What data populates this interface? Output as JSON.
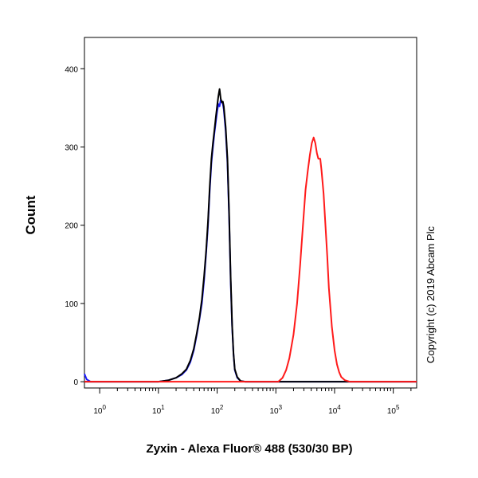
{
  "chart_data": {
    "type": "line",
    "xlabel": "Zyxin - Alexa Fluor® 488 (530/30 BP)",
    "ylabel": "Count",
    "xscale": "log",
    "xlim": [
      0.55,
      250000
    ],
    "ylim": [
      -8,
      440
    ],
    "yticks": [
      0,
      100,
      200,
      300,
      400
    ],
    "xticks": [
      {
        "base": "10",
        "exp": "0",
        "value": 1
      },
      {
        "base": "10",
        "exp": "1",
        "value": 10
      },
      {
        "base": "10",
        "exp": "2",
        "value": 100
      },
      {
        "base": "10",
        "exp": "3",
        "value": 1000
      },
      {
        "base": "10",
        "exp": "4",
        "value": 10000
      },
      {
        "base": "10",
        "exp": "5",
        "value": 100000
      }
    ],
    "grid": false,
    "series": [
      {
        "color": "#1a1aff",
        "points": [
          [
            0.55,
            10
          ],
          [
            0.6,
            3
          ],
          [
            0.7,
            0
          ],
          [
            10,
            0
          ],
          [
            15,
            2
          ],
          [
            20,
            5
          ],
          [
            25,
            9
          ],
          [
            30,
            15
          ],
          [
            35,
            25
          ],
          [
            40,
            40
          ],
          [
            45,
            60
          ],
          [
            50,
            80
          ],
          [
            55,
            100
          ],
          [
            60,
            130
          ],
          [
            65,
            165
          ],
          [
            70,
            200
          ],
          [
            75,
            245
          ],
          [
            80,
            280
          ],
          [
            85,
            300
          ],
          [
            90,
            318
          ],
          [
            95,
            332
          ],
          [
            100,
            345
          ],
          [
            105,
            355
          ],
          [
            110,
            352
          ],
          [
            115,
            360
          ],
          [
            120,
            358
          ],
          [
            125,
            355
          ],
          [
            130,
            348
          ],
          [
            140,
            320
          ],
          [
            150,
            280
          ],
          [
            160,
            210
          ],
          [
            170,
            130
          ],
          [
            180,
            70
          ],
          [
            190,
            35
          ],
          [
            200,
            15
          ],
          [
            220,
            5
          ],
          [
            250,
            1
          ],
          [
            300,
            0
          ],
          [
            250000,
            0
          ]
        ]
      },
      {
        "color": "#000000",
        "points": [
          [
            0.55,
            0
          ],
          [
            10,
            0
          ],
          [
            15,
            2
          ],
          [
            20,
            5
          ],
          [
            25,
            10
          ],
          [
            30,
            16
          ],
          [
            35,
            27
          ],
          [
            40,
            42
          ],
          [
            45,
            62
          ],
          [
            50,
            82
          ],
          [
            55,
            105
          ],
          [
            60,
            135
          ],
          [
            65,
            168
          ],
          [
            70,
            205
          ],
          [
            75,
            250
          ],
          [
            80,
            285
          ],
          [
            85,
            305
          ],
          [
            90,
            322
          ],
          [
            95,
            338
          ],
          [
            100,
            352
          ],
          [
            105,
            365
          ],
          [
            110,
            374
          ],
          [
            115,
            362
          ],
          [
            120,
            357
          ],
          [
            125,
            358
          ],
          [
            130,
            352
          ],
          [
            140,
            325
          ],
          [
            150,
            285
          ],
          [
            160,
            215
          ],
          [
            170,
            135
          ],
          [
            180,
            72
          ],
          [
            190,
            36
          ],
          [
            200,
            16
          ],
          [
            220,
            6
          ],
          [
            250,
            1
          ],
          [
            300,
            0
          ],
          [
            250000,
            0
          ]
        ]
      },
      {
        "color": "#ff1a1a",
        "points": [
          [
            0.55,
            0
          ],
          [
            1100,
            0
          ],
          [
            1300,
            5
          ],
          [
            1500,
            15
          ],
          [
            1700,
            30
          ],
          [
            2000,
            60
          ],
          [
            2300,
            100
          ],
          [
            2600,
            150
          ],
          [
            2900,
            200
          ],
          [
            3200,
            245
          ],
          [
            3500,
            270
          ],
          [
            3800,
            290
          ],
          [
            4100,
            305
          ],
          [
            4400,
            312
          ],
          [
            4700,
            305
          ],
          [
            5000,
            292
          ],
          [
            5300,
            285
          ],
          [
            5700,
            285
          ],
          [
            6000,
            270
          ],
          [
            6500,
            240
          ],
          [
            7000,
            200
          ],
          [
            7500,
            160
          ],
          [
            8000,
            120
          ],
          [
            9000,
            70
          ],
          [
            10000,
            40
          ],
          [
            11000,
            22
          ],
          [
            12000,
            12
          ],
          [
            13000,
            6
          ],
          [
            15000,
            2
          ],
          [
            18000,
            0
          ],
          [
            250000,
            0
          ]
        ]
      }
    ]
  },
  "copyright": "Copyright (c) 2019 Abcam Plc"
}
